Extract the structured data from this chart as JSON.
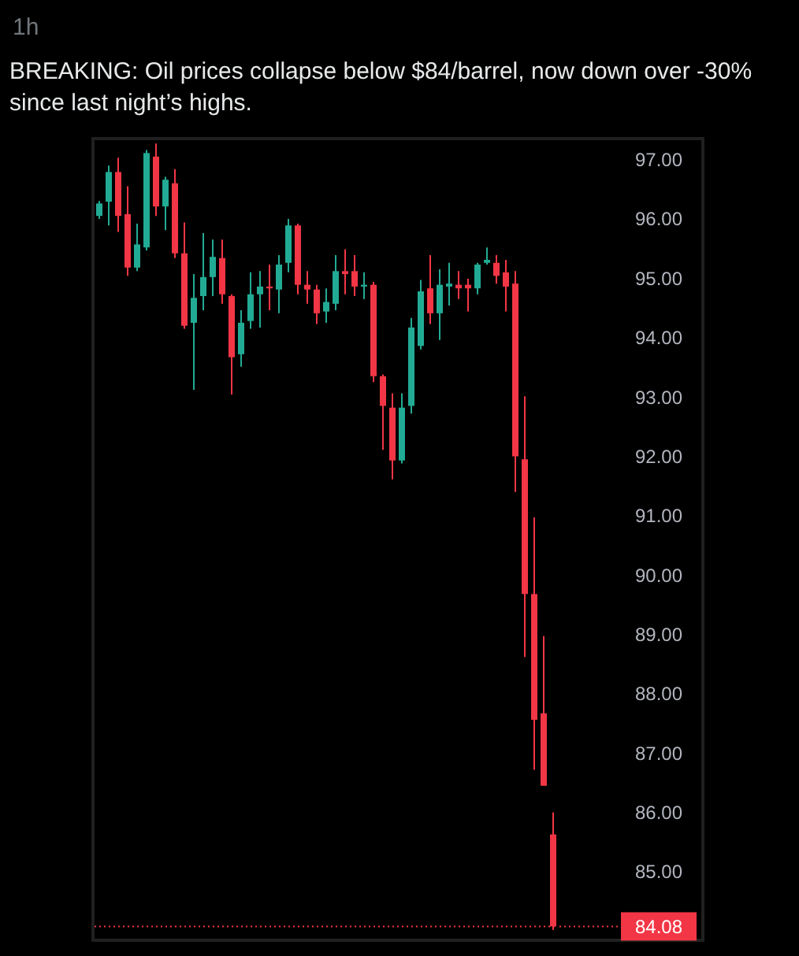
{
  "chart_data": {
    "type": "candlestick",
    "title": "BREAKING: Oil prices collapse below $84/barrel, now down over -30% since last night’s highs.",
    "subtitle": "1h",
    "categories": [
      null,
      null,
      null,
      null,
      null,
      null,
      null,
      null,
      null,
      null,
      null,
      null,
      null,
      null,
      null,
      null,
      null,
      null,
      null,
      null,
      null,
      null,
      null,
      null,
      null,
      null,
      null,
      null,
      null,
      null,
      null,
      null,
      null,
      null,
      null,
      null,
      null,
      null,
      null,
      null,
      null,
      null,
      null,
      null,
      null,
      null,
      null,
      null,
      null
    ],
    "ohlc": [
      [
        96.05,
        96.3,
        96.0,
        96.26
      ],
      [
        96.29,
        96.9,
        95.89,
        96.79
      ],
      [
        96.79,
        97.03,
        95.78,
        96.05
      ],
      [
        96.08,
        96.55,
        95.04,
        95.18
      ],
      [
        95.18,
        95.92,
        95.12,
        95.57
      ],
      [
        95.52,
        97.16,
        95.47,
        97.11
      ],
      [
        97.05,
        97.27,
        96.05,
        96.21
      ],
      [
        96.21,
        96.71,
        95.81,
        96.66
      ],
      [
        96.6,
        96.84,
        95.34,
        95.42
      ],
      [
        95.42,
        95.94,
        94.15,
        94.2
      ],
      [
        94.25,
        95.07,
        93.12,
        94.67
      ],
      [
        94.7,
        95.76,
        94.46,
        95.02
      ],
      [
        95.02,
        95.65,
        94.7,
        95.36
      ],
      [
        95.34,
        95.65,
        94.57,
        94.73
      ],
      [
        94.7,
        94.73,
        93.04,
        93.67
      ],
      [
        93.72,
        94.46,
        93.51,
        94.25
      ],
      [
        94.28,
        95.1,
        94.15,
        94.73
      ],
      [
        94.73,
        95.12,
        94.17,
        94.86
      ],
      [
        94.86,
        95.23,
        94.46,
        94.83
      ],
      [
        94.81,
        95.39,
        94.41,
        95.23
      ],
      [
        95.26,
        96.0,
        95.1,
        95.89
      ],
      [
        95.89,
        95.92,
        94.73,
        94.89
      ],
      [
        94.89,
        95.12,
        94.57,
        94.81
      ],
      [
        94.81,
        94.89,
        94.23,
        94.41
      ],
      [
        94.44,
        94.83,
        94.25,
        94.6
      ],
      [
        94.57,
        95.39,
        94.46,
        95.12
      ],
      [
        95.12,
        95.49,
        94.73,
        95.07
      ],
      [
        95.12,
        95.39,
        94.7,
        94.86
      ],
      [
        94.86,
        95.1,
        94.65,
        94.89
      ],
      [
        94.89,
        94.94,
        93.25,
        93.35
      ],
      [
        93.35,
        93.38,
        92.11,
        92.85
      ],
      [
        92.82,
        93.06,
        91.61,
        91.93
      ],
      [
        91.93,
        93.06,
        91.88,
        92.82
      ],
      [
        92.85,
        94.33,
        92.72,
        94.17
      ],
      [
        93.86,
        94.97,
        93.8,
        94.78
      ],
      [
        94.83,
        95.39,
        94.23,
        94.41
      ],
      [
        94.41,
        95.15,
        93.96,
        94.89
      ],
      [
        94.86,
        95.26,
        94.54,
        94.91
      ],
      [
        94.89,
        95.12,
        94.65,
        94.83
      ],
      [
        94.89,
        94.99,
        94.44,
        94.83
      ],
      [
        94.83,
        95.26,
        94.73,
        95.23
      ],
      [
        95.26,
        95.52,
        95.23,
        95.31
      ],
      [
        95.26,
        95.39,
        94.91,
        95.04
      ],
      [
        95.1,
        95.31,
        94.44,
        94.86
      ],
      [
        94.91,
        95.12,
        91.4,
        92.0
      ],
      [
        91.95,
        93.01,
        88.62,
        89.68
      ],
      [
        89.68,
        90.97,
        86.72,
        87.56
      ],
      [
        87.67,
        88.97,
        86.45,
        86.45
      ],
      [
        85.63,
        86.0,
        84.02,
        84.08
      ]
    ],
    "colors": [
      "#22ab94",
      "#22ab94",
      "#f23645",
      "#f23645",
      "#22ab94",
      "#22ab94",
      "#f23645",
      "#22ab94",
      "#f23645",
      "#f23645",
      "#22ab94",
      "#22ab94",
      "#22ab94",
      "#f23645",
      "#f23645",
      "#22ab94",
      "#22ab94",
      "#22ab94",
      "#f23645",
      "#22ab94",
      "#22ab94",
      "#f23645",
      "#f23645",
      "#f23645",
      "#22ab94",
      "#22ab94",
      "#f23645",
      "#f23645",
      "#22ab94",
      "#f23645",
      "#f23645",
      "#f23645",
      "#22ab94",
      "#22ab94",
      "#22ab94",
      "#f23645",
      "#22ab94",
      "#22ab94",
      "#f23645",
      "#f23645",
      "#22ab94",
      "#22ab94",
      "#f23645",
      "#f23645",
      "#f23645",
      "#f23645",
      "#f23645",
      "#f23645",
      "#f23645"
    ],
    "ylim": [
      83.9,
      97.3
    ],
    "yticks": [
      {
        "value": 85,
        "label": "85.00"
      },
      {
        "value": 86,
        "label": "86.00"
      },
      {
        "value": 87,
        "label": "87.00"
      },
      {
        "value": 88,
        "label": "88.00"
      },
      {
        "value": 89,
        "label": "89.00"
      },
      {
        "value": 90,
        "label": "90.00"
      },
      {
        "value": 91,
        "label": "91.00"
      },
      {
        "value": 92,
        "label": "92.00"
      },
      {
        "value": 93,
        "label": "93.00"
      },
      {
        "value": 94,
        "label": "94.00"
      },
      {
        "value": 95,
        "label": "95.00"
      },
      {
        "value": 96,
        "label": "96.00"
      },
      {
        "value": 97,
        "label": "97.00"
      }
    ],
    "ref_lines": [
      {
        "axis": "y",
        "value": 84.08,
        "label": "84.08",
        "color": "#f23645",
        "line_style": "dotted"
      }
    ],
    "tick_labels": "y",
    "grid": false
  }
}
